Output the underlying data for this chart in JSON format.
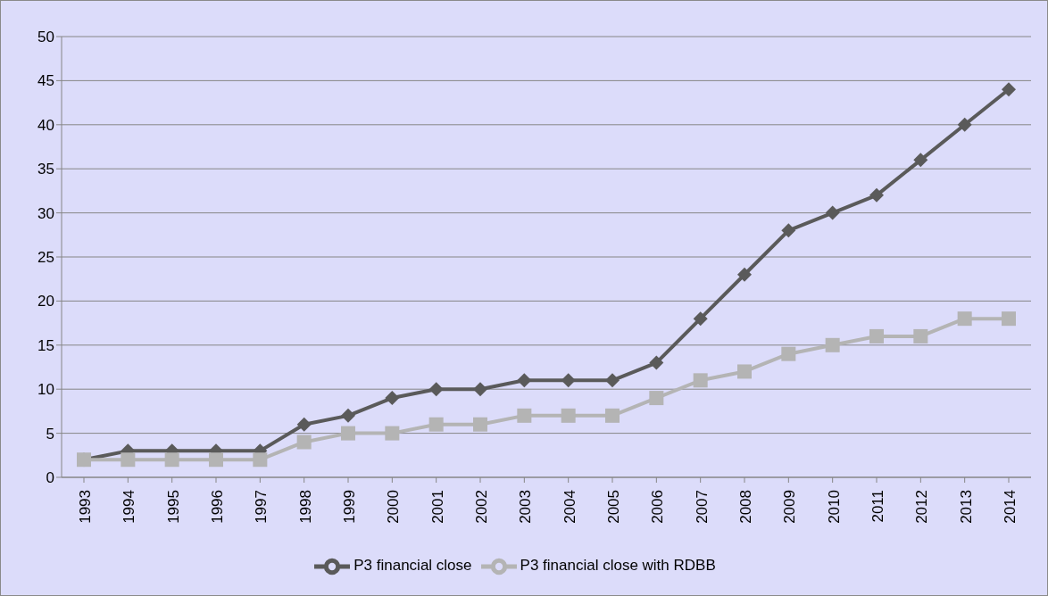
{
  "chart_data": {
    "type": "line",
    "categories": [
      "1993",
      "1994",
      "1995",
      "1996",
      "1997",
      "1998",
      "1999",
      "2000",
      "2001",
      "2002",
      "2003",
      "2004",
      "2005",
      "2006",
      "2007",
      "2008",
      "2009",
      "2010",
      "2011",
      "2012",
      "2013",
      "2014"
    ],
    "series": [
      {
        "name": "P3 financial close",
        "color": "#5a5a5a",
        "marker": "diamond",
        "values": [
          2,
          3,
          3,
          3,
          3,
          6,
          7,
          9,
          10,
          10,
          11,
          11,
          11,
          13,
          18,
          23,
          28,
          30,
          32,
          36,
          40,
          44
        ]
      },
      {
        "name": "P3 financial close with RDBB",
        "color": "#b4b4b4",
        "marker": "square",
        "values": [
          2,
          2,
          2,
          2,
          2,
          4,
          5,
          5,
          6,
          6,
          7,
          7,
          7,
          9,
          11,
          12,
          14,
          15,
          16,
          16,
          18,
          18
        ]
      }
    ],
    "ylim": [
      0,
      50
    ],
    "yticks": [
      0,
      5,
      10,
      15,
      20,
      25,
      30,
      35,
      40,
      45,
      50
    ],
    "grid": "y",
    "legend": "bottom",
    "line_style": "solid"
  }
}
